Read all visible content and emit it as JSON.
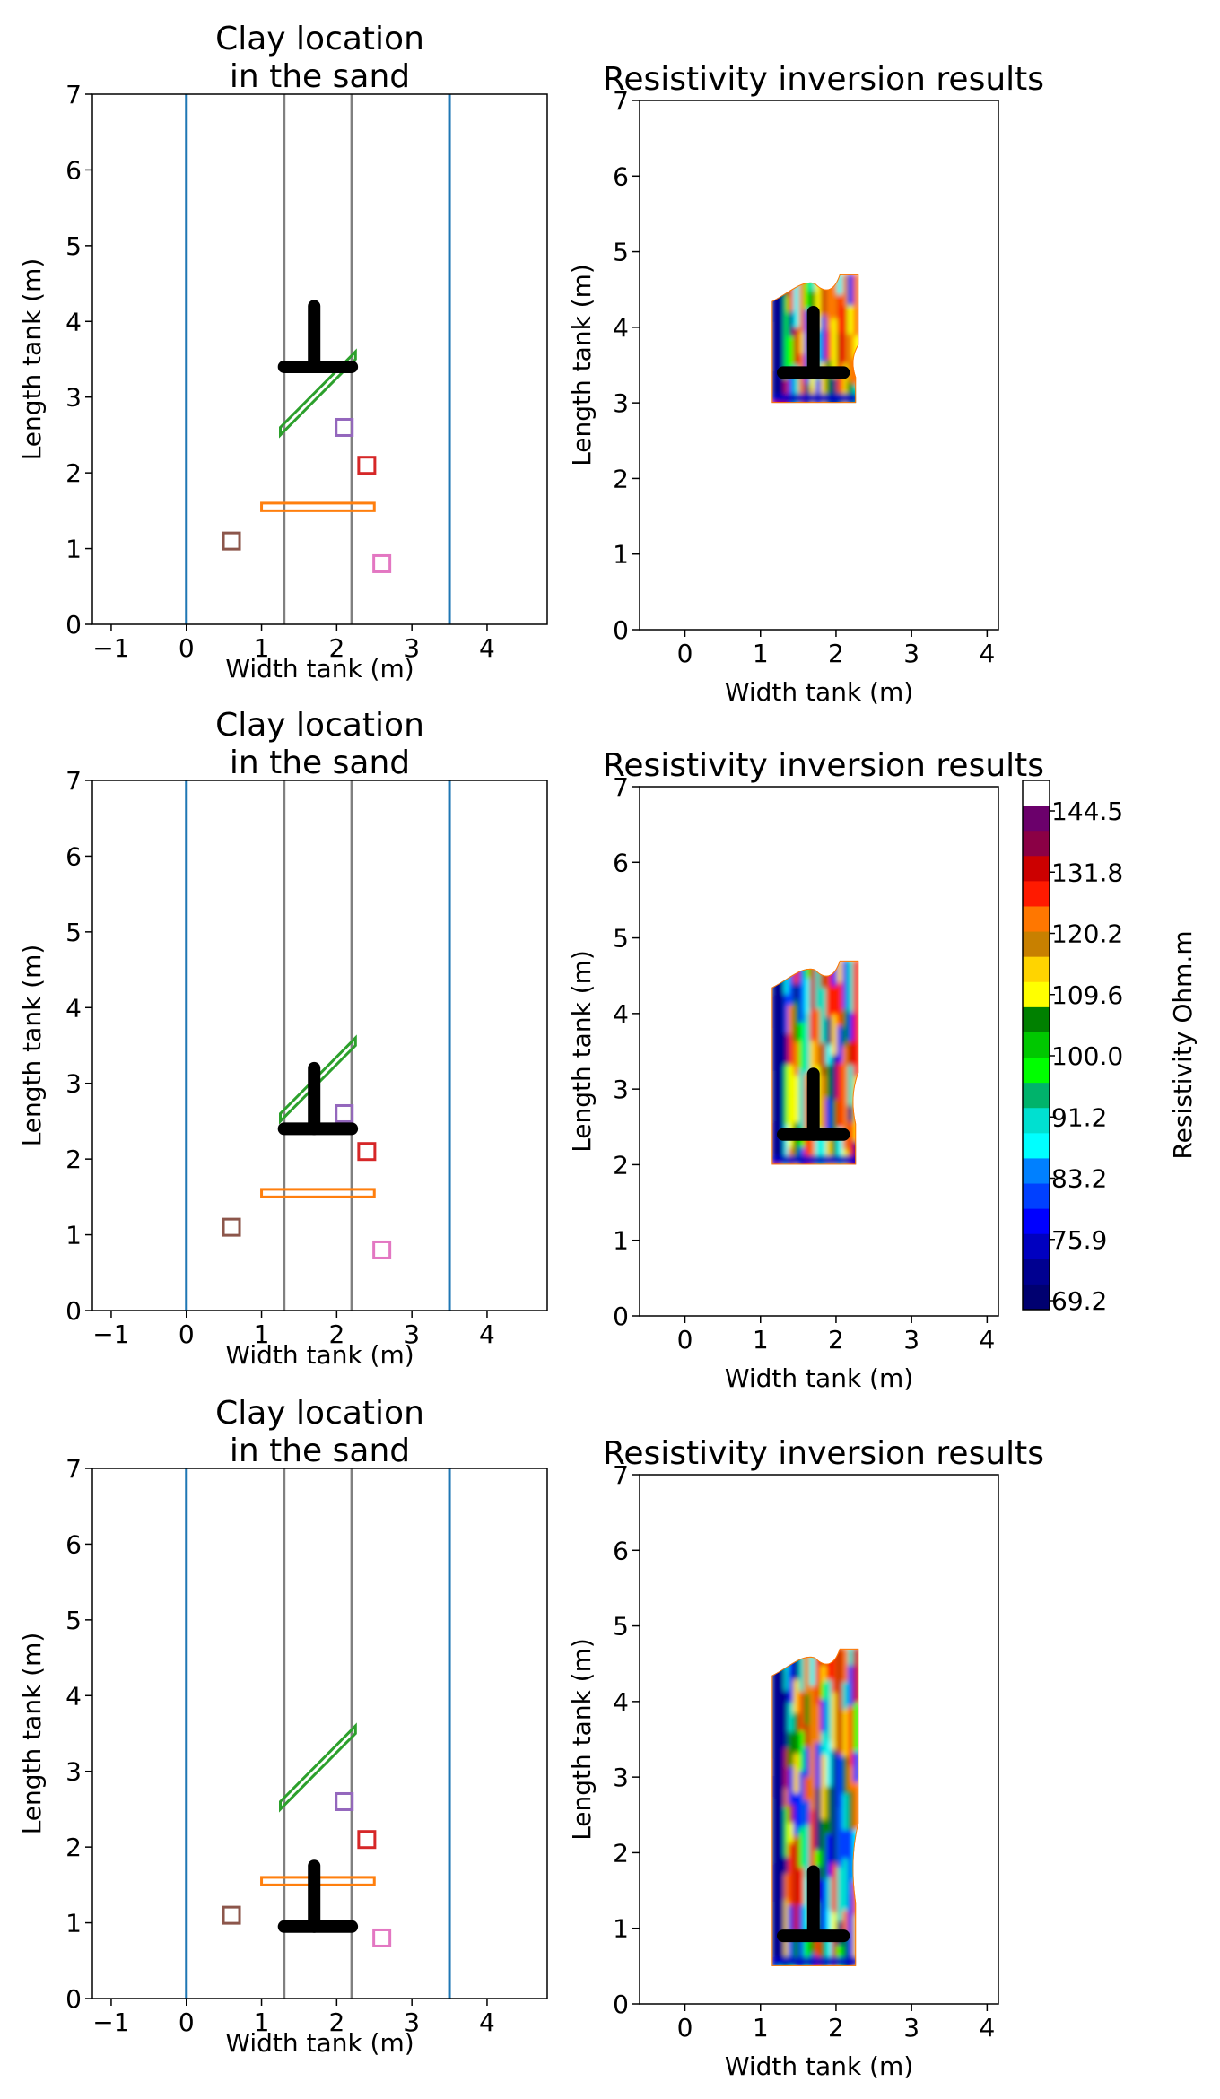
{
  "figure": {
    "rows": [
      {
        "left": {
          "title_lines": [
            "Clay location",
            "in the sand"
          ],
          "xlabel": "Width tank (m)",
          "ylabel": "Length tank (m)",
          "xlim": [
            -1.25,
            4.8
          ],
          "ylim": [
            0,
            7
          ],
          "xticks": [
            "−1",
            "0",
            "1",
            "2",
            "3",
            "4"
          ],
          "xtick_values": [
            -1,
            0,
            1,
            2,
            3,
            4
          ],
          "yticks": [
            "0",
            "1",
            "2",
            "3",
            "4",
            "5",
            "6",
            "7"
          ],
          "tshape": {
            "bar_y": 3.4,
            "bar_x": [
              1.3,
              2.2
            ],
            "stem_x": 1.7,
            "stem_y": [
              3.4,
              4.2
            ]
          }
        },
        "right": {
          "title": "Resistivity inversion results",
          "xlabel": "Width tank (m)",
          "ylabel": "Length tank (m)",
          "xlim": [
            -0.6,
            4.15
          ],
          "ylim": [
            0,
            7
          ],
          "xticks": [
            "0",
            "1",
            "2",
            "3",
            "4"
          ],
          "xtick_values": [
            0,
            1,
            2,
            3,
            4
          ],
          "yticks": [
            "0",
            "1",
            "2",
            "3",
            "4",
            "5",
            "6",
            "7"
          ],
          "inversion_extent": {
            "x": [
              1.15,
              2.3
            ],
            "y": [
              3.0,
              4.7
            ]
          },
          "tshape": {
            "bar_y": 3.4,
            "bar_x": [
              1.3,
              2.1
            ],
            "stem_x": 1.7,
            "stem_y": [
              3.4,
              4.2
            ]
          }
        }
      },
      {
        "left": {
          "title_lines": [
            "Clay location",
            "in the sand"
          ],
          "xlabel": "Width tank (m)",
          "ylabel": "Length tank (m)",
          "xlim": [
            -1.25,
            4.8
          ],
          "ylim": [
            0,
            7
          ],
          "xticks": [
            "−1",
            "0",
            "1",
            "2",
            "3",
            "4"
          ],
          "xtick_values": [
            -1,
            0,
            1,
            2,
            3,
            4
          ],
          "yticks": [
            "0",
            "1",
            "2",
            "3",
            "4",
            "5",
            "6",
            "7"
          ],
          "tshape": {
            "bar_y": 2.4,
            "bar_x": [
              1.3,
              2.2
            ],
            "stem_x": 1.7,
            "stem_y": [
              2.4,
              3.2
            ]
          }
        },
        "right": {
          "title": "Resistivity inversion results",
          "xlabel": "Width tank (m)",
          "ylabel": "Length tank (m)",
          "xlim": [
            -0.6,
            4.15
          ],
          "ylim": [
            0,
            7
          ],
          "xticks": [
            "0",
            "1",
            "2",
            "3",
            "4"
          ],
          "xtick_values": [
            0,
            1,
            2,
            3,
            4
          ],
          "yticks": [
            "0",
            "1",
            "2",
            "3",
            "4",
            "5",
            "6",
            "7"
          ],
          "inversion_extent": {
            "x": [
              1.15,
              2.3
            ],
            "y": [
              2.0,
              4.7
            ]
          },
          "tshape": {
            "bar_y": 2.4,
            "bar_x": [
              1.3,
              2.1
            ],
            "stem_x": 1.7,
            "stem_y": [
              2.4,
              3.2
            ]
          }
        }
      },
      {
        "left": {
          "title_lines": [
            "Clay location",
            "in the sand"
          ],
          "xlabel": "Width tank (m)",
          "ylabel": "Length tank (m)",
          "xlim": [
            -1.25,
            4.8
          ],
          "ylim": [
            0,
            7
          ],
          "xticks": [
            "−1",
            "0",
            "1",
            "2",
            "3",
            "4"
          ],
          "xtick_values": [
            -1,
            0,
            1,
            2,
            3,
            4
          ],
          "yticks": [
            "0",
            "1",
            "2",
            "3",
            "4",
            "5",
            "6",
            "7"
          ],
          "tshape": {
            "bar_y": 0.95,
            "bar_x": [
              1.3,
              2.2
            ],
            "stem_x": 1.7,
            "stem_y": [
              0.95,
              1.75
            ]
          }
        },
        "right": {
          "title": "Resistivity inversion results",
          "xlabel": "Width tank (m)",
          "ylabel": "Length tank (m)",
          "xlim": [
            -0.6,
            4.15
          ],
          "ylim": [
            0,
            7
          ],
          "xticks": [
            "0",
            "1",
            "2",
            "3",
            "4"
          ],
          "xtick_values": [
            0,
            1,
            2,
            3,
            4
          ],
          "yticks": [
            "0",
            "1",
            "2",
            "3",
            "4",
            "5",
            "6",
            "7"
          ],
          "inversion_extent": {
            "x": [
              1.15,
              2.3
            ],
            "y": [
              0.5,
              4.7
            ]
          },
          "tshape": {
            "bar_y": 0.9,
            "bar_x": [
              1.3,
              2.1
            ],
            "stem_x": 1.7,
            "stem_y": [
              0.9,
              1.75
            ]
          }
        }
      }
    ],
    "colorbar": {
      "label": "Resistivity Ohm.m",
      "ticks": [
        "144.5",
        "131.8",
        "120.2",
        "109.6",
        "100.0",
        "91.2",
        "83.2",
        "75.9",
        "69.2"
      ],
      "colors_top_to_bottom": [
        "#ffffff",
        "#6b006b",
        "#8b0045",
        "#cc0000",
        "#ff1a00",
        "#ff7700",
        "#c88000",
        "#ffd400",
        "#ffff00",
        "#008000",
        "#00c800",
        "#00ff00",
        "#00b36b",
        "#00e0d0",
        "#00ffff",
        "#0080ff",
        "#0040ff",
        "#0000ff",
        "#0000c0",
        "#000090",
        "#000070"
      ]
    },
    "scene": {
      "tank_walls_x": [
        0,
        3.5
      ],
      "inner_lines_x": [
        1.3,
        2.2
      ],
      "wall_color": "#1f77b4",
      "inner_line_color": "#808080",
      "green_bar": {
        "color": "#2ca02c",
        "from": [
          1.25,
          2.55
        ],
        "to": [
          2.25,
          3.55
        ],
        "width": 0.1
      },
      "orange_bar": {
        "color": "#ff7f0e",
        "x": [
          1.0,
          2.5
        ],
        "y": [
          1.5,
          1.6
        ]
      },
      "squares": [
        {
          "color": "#9467bd",
          "x": 2.1,
          "y": 2.6
        },
        {
          "color": "#d62728",
          "x": 2.4,
          "y": 2.1
        },
        {
          "color": "#8c564b",
          "x": 0.6,
          "y": 1.1
        },
        {
          "color": "#e377c2",
          "x": 2.6,
          "y": 0.8
        }
      ]
    }
  }
}
